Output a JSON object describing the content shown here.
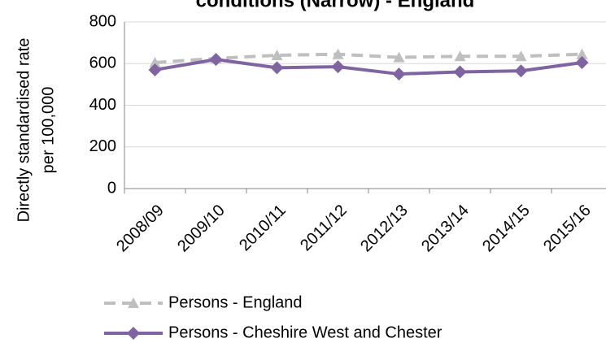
{
  "chart_data": {
    "type": "line",
    "title": "conditions (Narrow) - England",
    "y_label_lines": [
      "Directly standardised rate",
      "per 100,000"
    ],
    "categories": [
      "2008/09",
      "2009/10",
      "2010/11",
      "2011/12",
      "2012/13",
      "2013/14",
      "2014/15",
      "2015/16"
    ],
    "series": [
      {
        "name": "Persons - England",
        "color": "#bfbfbf",
        "dash": true,
        "marker": "triangle",
        "values": [
          605,
          625,
          640,
          645,
          630,
          635,
          635,
          645
        ]
      },
      {
        "name": "Persons - Cheshire West and Chester",
        "color": "#8064a2",
        "dash": false,
        "marker": "diamond",
        "values": [
          570,
          620,
          580,
          585,
          550,
          560,
          565,
          605
        ]
      }
    ],
    "ylim": [
      0,
      800
    ],
    "yticks": [
      0,
      200,
      400,
      600,
      800
    ],
    "grid": true,
    "legend": "bottom"
  }
}
